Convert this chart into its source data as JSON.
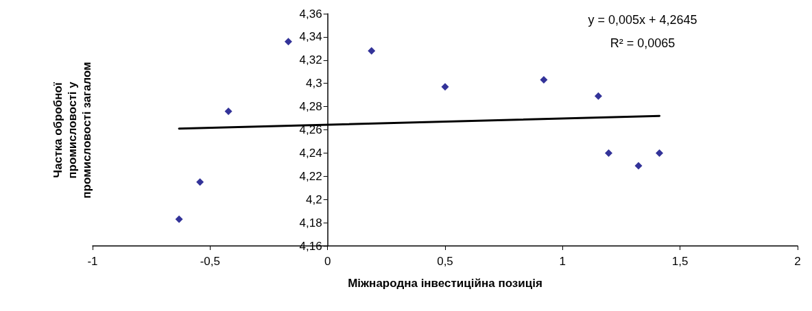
{
  "chart_data": {
    "type": "scatter",
    "xlabel": "Міжнародна інвестиційна позиція",
    "ylabel": "Частка обробної промисловості у промисловості загалом",
    "annotations": [
      "y = 0,005x + 4,2645",
      "R² = 0,0065"
    ],
    "series": [
      {
        "color": "#000080",
        "marker": "diamond",
        "x": [
          -0.632,
          -0.543,
          -0.422,
          -0.167,
          0.187,
          0.5,
          0.92,
          1.152,
          1.196,
          1.323,
          1.412
        ],
        "values": [
          4.183,
          4.215,
          4.276,
          4.336,
          4.328,
          4.297,
          4.303,
          4.289,
          4.24,
          4.229,
          4.24
        ]
      },
      {
        "type": "line",
        "color": "#000000",
        "marker": "none",
        "x": [
          -0.632,
          1.412
        ],
        "values": [
          4.261,
          4.272
        ]
      }
    ],
    "xlim": [
      -1,
      2
    ],
    "xticks": [
      -1,
      {
        "value": -0.5,
        "label": "-0,5"
      },
      0,
      {
        "value": 0.5,
        "label": "0,5"
      },
      1,
      {
        "value": 1.5,
        "label": "1,5"
      },
      2
    ],
    "ylim": [
      4.16,
      4.36
    ],
    "yticks": [
      {
        "value": 4.16,
        "label": "4,16"
      },
      {
        "value": 4.18,
        "label": "4,18"
      },
      {
        "value": 4.2,
        "label": "4,2"
      },
      {
        "value": 4.22,
        "label": "4,22"
      },
      {
        "value": 4.24,
        "label": "4,24"
      },
      {
        "value": 4.26,
        "label": "4,26"
      },
      {
        "value": 4.28,
        "label": "4,28"
      },
      {
        "value": 4.3,
        "label": "4,3"
      },
      {
        "value": 4.32,
        "label": "4,32"
      },
      {
        "value": 4.34,
        "label": "4,34"
      },
      {
        "value": 4.36,
        "label": "4,36"
      }
    ],
    "grid": false
  }
}
